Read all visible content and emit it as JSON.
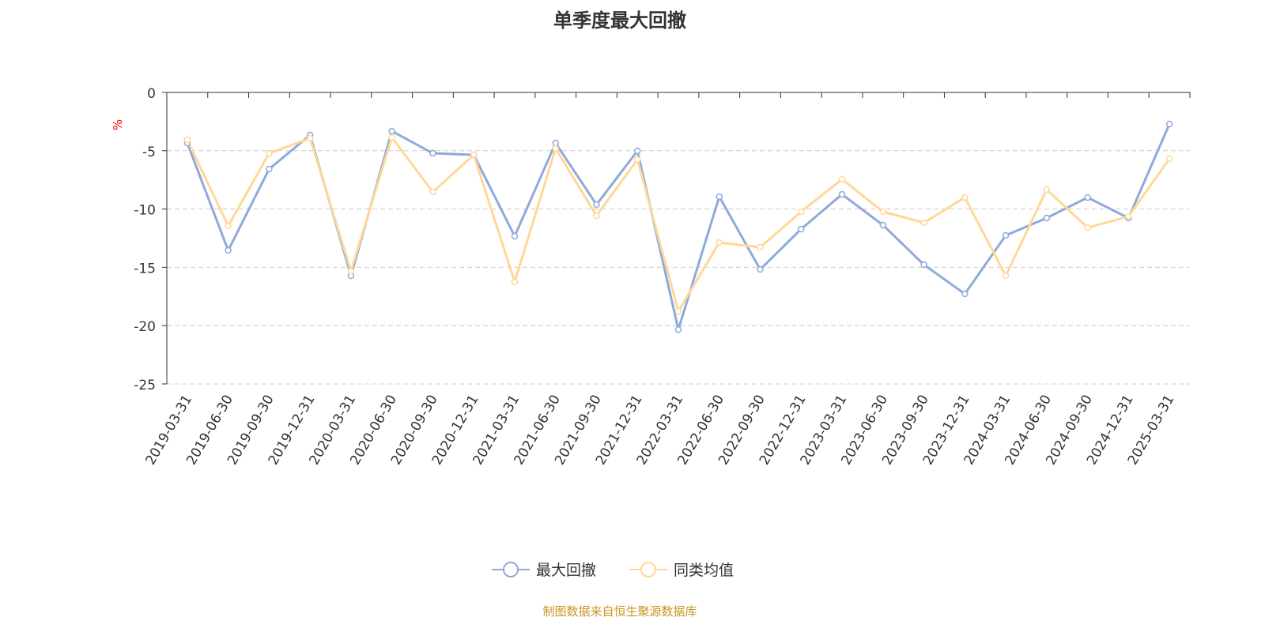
{
  "chart_data": {
    "type": "line",
    "title": "单季度最大回撤",
    "ylabel": "%",
    "xlabel": "",
    "ylim": [
      -25,
      0
    ],
    "yticks": [
      0,
      -5,
      -10,
      -15,
      -20,
      -25
    ],
    "grid": true,
    "legend_position": "bottom",
    "categories": [
      "2019-03-31",
      "2019-06-30",
      "2019-09-30",
      "2019-12-31",
      "2020-03-31",
      "2020-06-30",
      "2020-09-30",
      "2020-12-31",
      "2021-03-31",
      "2021-06-30",
      "2021-09-30",
      "2021-12-31",
      "2022-03-31",
      "2022-06-30",
      "2022-09-30",
      "2022-12-31",
      "2023-03-31",
      "2023-06-30",
      "2023-09-30",
      "2023-12-31",
      "2024-03-31",
      "2024-06-30",
      "2024-09-30",
      "2024-12-31",
      "2025-03-31"
    ],
    "series": [
      {
        "name": "最大回撤",
        "color": "#8eaadb",
        "values": [
          -4.34,
          -13.55,
          -6.57,
          -3.66,
          -15.72,
          -3.32,
          -5.22,
          -5.35,
          -12.33,
          -4.34,
          -9.62,
          -5.01,
          -20.33,
          -8.94,
          -15.18,
          -11.72,
          -8.74,
          -11.38,
          -14.77,
          -17.28,
          -12.26,
          -10.77,
          -9.01,
          -10.77,
          -2.71
        ]
      },
      {
        "name": "同类均值",
        "color": "#ffd898",
        "values": [
          -4.07,
          -11.45,
          -5.22,
          -3.93,
          -15.31,
          -3.86,
          -8.54,
          -5.35,
          -16.26,
          -4.81,
          -10.57,
          -5.76,
          -18.77,
          -12.87,
          -13.28,
          -10.23,
          -7.45,
          -10.23,
          -11.18,
          -9.01,
          -15.72,
          -8.33,
          -11.59,
          -10.64,
          -5.69
        ]
      }
    ]
  },
  "footer": "制图数据来自恒生聚源数据库"
}
